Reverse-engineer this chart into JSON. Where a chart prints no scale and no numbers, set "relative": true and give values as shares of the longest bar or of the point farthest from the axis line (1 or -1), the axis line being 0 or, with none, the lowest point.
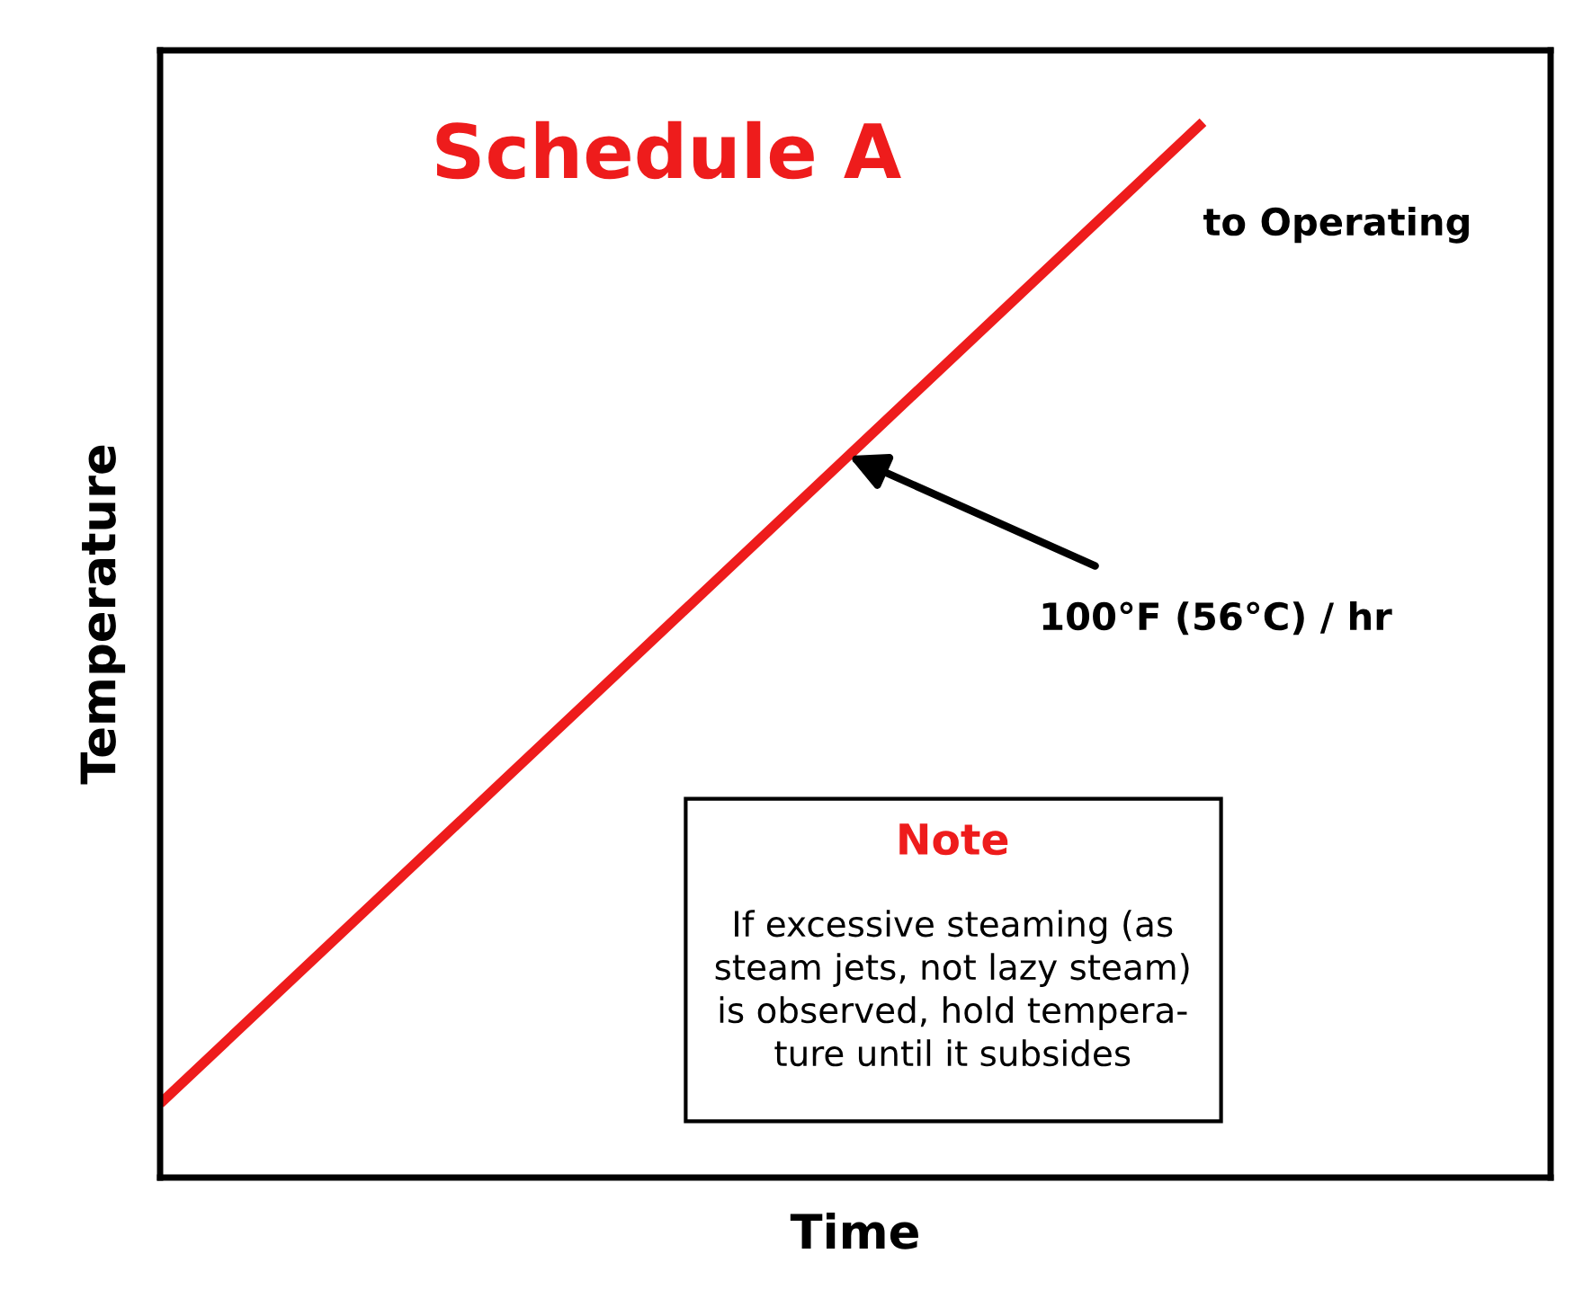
{
  "chart_data": {
    "type": "line",
    "title": "Schedule A",
    "xlabel": "Time",
    "ylabel": "Temperature",
    "relative": true,
    "categories": [
      null,
      null,
      null,
      null,
      null
    ],
    "series": [
      {
        "color": "#ee1c1c",
        "values": [
          0.07,
          0.38,
          0.69,
          1.0,
          null
        ]
      }
    ],
    "annotations": [
      "to Operating",
      "100°F (56°C) / hr",
      "Note",
      "If excessive steaming (as\nsteam jets, not lazy steam)\nis observed, hold tempera-\nture until it subsides"
    ],
    "marker": "none",
    "line_style": "solid"
  }
}
